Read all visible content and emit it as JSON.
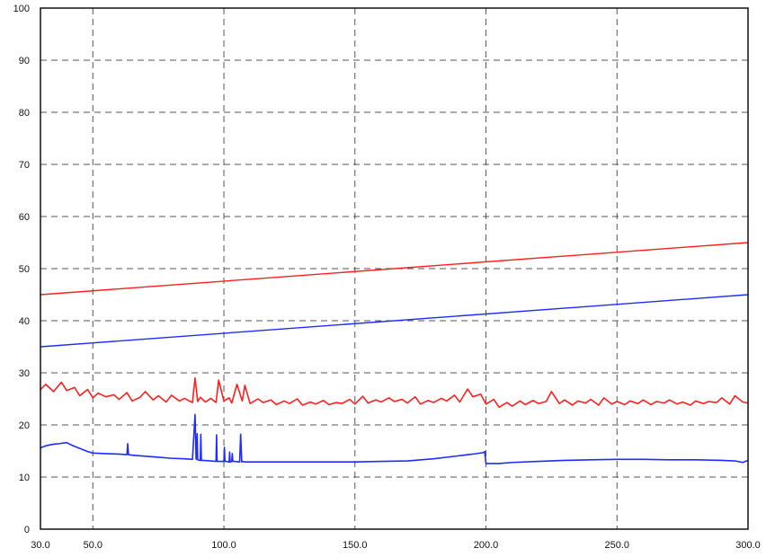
{
  "chart_data": {
    "type": "line",
    "title": "",
    "xlabel": "",
    "ylabel": "",
    "xlim": [
      30,
      300
    ],
    "ylim": [
      0,
      100
    ],
    "grid": true,
    "legend": "none",
    "x_ticks": [
      30,
      50,
      100,
      150,
      200,
      250,
      300
    ],
    "x_tick_labels": [
      "30.0",
      "50.0",
      "100.0",
      "150.0",
      "200.0",
      "250.0",
      "300.0"
    ],
    "y_ticks": [
      0,
      10,
      20,
      30,
      40,
      50,
      60,
      70,
      80,
      90,
      100
    ],
    "y_tick_labels": [
      "0",
      "10",
      "20",
      "30",
      "40",
      "50",
      "60",
      "70",
      "80",
      "90",
      "100"
    ],
    "colors": {
      "red": "#ff1f1f",
      "blue": "#1f2cff",
      "grid": "#444444",
      "axis": "#111111"
    },
    "series": [
      {
        "color": "#ff1f1f",
        "style": "limit",
        "x": [
          30,
          300
        ],
        "y": [
          45,
          55
        ]
      },
      {
        "color": "#1f2cff",
        "style": "limit",
        "x": [
          30,
          300
        ],
        "y": [
          35,
          45
        ]
      },
      {
        "color": "#ff1f1f",
        "style": "measurement",
        "x": [
          30,
          32,
          35,
          38,
          40,
          43,
          45,
          48,
          50,
          52,
          55,
          58,
          60,
          63,
          65,
          68,
          70,
          73,
          75,
          78,
          80,
          83,
          85,
          88,
          89,
          90,
          91,
          93,
          95,
          97,
          98,
          100,
          102,
          103,
          105,
          107,
          108,
          110,
          113,
          115,
          118,
          120,
          123,
          125,
          128,
          130,
          133,
          135,
          138,
          140,
          143,
          145,
          148,
          150,
          153,
          155,
          158,
          160,
          163,
          165,
          168,
          170,
          173,
          175,
          178,
          180,
          183,
          185,
          188,
          190,
          193,
          195,
          198,
          200,
          203,
          205,
          208,
          210,
          213,
          215,
          218,
          220,
          223,
          225,
          228,
          230,
          233,
          235,
          238,
          240,
          243,
          245,
          248,
          250,
          253,
          255,
          258,
          260,
          263,
          265,
          268,
          270,
          273,
          275,
          278,
          280,
          283,
          285,
          288,
          290,
          293,
          295,
          298,
          300
        ],
        "y": [
          26.8,
          27.8,
          26.4,
          28.2,
          26.6,
          27.2,
          25.6,
          26.8,
          25.2,
          26.1,
          25.4,
          25.8,
          24.9,
          26.2,
          24.6,
          25.3,
          26.4,
          24.8,
          25.6,
          24.4,
          25.7,
          24.6,
          25.1,
          24.3,
          29.0,
          24.5,
          25.3,
          24.4,
          25.1,
          24.3,
          28.6,
          24.6,
          25.2,
          24.2,
          27.8,
          24.6,
          27.6,
          24.1,
          25.0,
          24.3,
          24.8,
          23.9,
          24.6,
          24.1,
          25.0,
          23.8,
          24.4,
          24.0,
          24.7,
          23.9,
          24.3,
          24.1,
          24.9,
          24.0,
          25.5,
          24.2,
          24.8,
          24.4,
          25.2,
          24.5,
          24.9,
          24.2,
          25.4,
          24.0,
          24.7,
          24.3,
          25.1,
          24.6,
          25.7,
          24.4,
          26.9,
          25.4,
          25.9,
          24.0,
          24.9,
          23.4,
          24.3,
          23.6,
          24.6,
          23.9,
          24.7,
          24.1,
          24.5,
          26.4,
          24.1,
          24.8,
          23.8,
          24.6,
          24.2,
          24.9,
          23.8,
          25.2,
          24.0,
          24.5,
          23.9,
          24.6,
          24.1,
          24.8,
          23.9,
          24.5,
          24.2,
          24.8,
          24.0,
          24.4,
          23.8,
          24.6,
          24.1,
          24.5,
          24.3,
          25.2,
          24.0,
          25.6,
          24.4,
          24.2
        ]
      },
      {
        "color": "#1f2cff",
        "style": "measurement",
        "x": [
          30,
          32,
          35,
          37,
          40,
          42,
          45,
          48,
          50,
          55,
          60,
          63,
          63.3,
          63.6,
          65,
          70,
          75,
          80,
          85,
          88,
          89,
          89.4,
          89.8,
          90,
          91,
          91.2,
          91.4,
          92,
          95,
          97,
          97.2,
          97.4,
          98,
          99,
          100,
          100.2,
          100.4,
          101,
          102,
          102.2,
          102.4,
          103,
          103.2,
          103.4,
          104,
          106,
          106.4,
          106.8,
          107.2,
          108,
          110,
          120,
          130,
          140,
          150,
          160,
          170,
          180,
          190,
          195,
          199,
          199.5,
          200,
          205,
          210,
          220,
          230,
          240,
          250,
          260,
          270,
          280,
          290,
          295,
          298,
          300
        ],
        "y": [
          15.6,
          16.0,
          16.3,
          16.4,
          16.6,
          16.1,
          15.5,
          14.9,
          14.6,
          14.5,
          14.4,
          14.3,
          16.4,
          14.3,
          14.2,
          14.0,
          13.8,
          13.6,
          13.5,
          13.4,
          22.0,
          13.4,
          18.3,
          13.3,
          13.2,
          18.2,
          13.2,
          13.2,
          13.1,
          13.0,
          18.1,
          13.0,
          13.0,
          13.0,
          13.0,
          15.7,
          13.0,
          13.0,
          12.9,
          14.8,
          12.9,
          13.0,
          14.5,
          13.0,
          13.0,
          12.9,
          18.2,
          12.9,
          13.0,
          12.9,
          12.9,
          12.9,
          12.9,
          12.9,
          12.9,
          13.0,
          13.1,
          13.5,
          14.1,
          14.4,
          14.7,
          14.9,
          12.6,
          12.6,
          12.8,
          13.0,
          13.2,
          13.3,
          13.4,
          13.4,
          13.3,
          13.3,
          13.2,
          13.1,
          12.8,
          13.2
        ]
      }
    ]
  }
}
